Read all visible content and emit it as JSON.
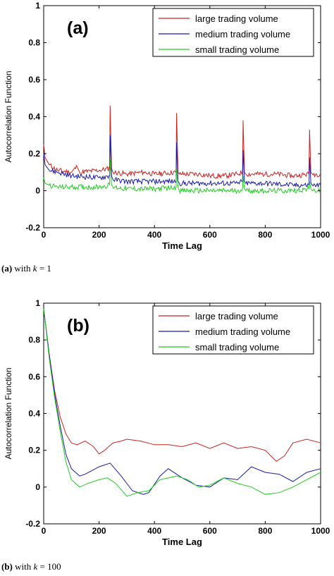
{
  "chart_data": [
    {
      "type": "line",
      "panel_label": "(a)",
      "xlabel": "Time Lag",
      "ylabel": "Autocorrelation Function",
      "xlim": [
        0,
        1000
      ],
      "ylim": [
        -0.2,
        1
      ],
      "xticks": [
        "0",
        "200",
        "400",
        "600",
        "800",
        "1000"
      ],
      "yticks": [
        "-0.2",
        "0",
        "0.2",
        "0.4",
        "0.6",
        "0.8",
        "1"
      ],
      "legend_position": "top-right",
      "grid": false,
      "series": [
        {
          "name": "large trading volume",
          "color": "#cc2222",
          "x": [
            0,
            5,
            20,
            50,
            100,
            120,
            130,
            200,
            238,
            240,
            245,
            250,
            300,
            360,
            400,
            478,
            480,
            485,
            490,
            560,
            600,
            650,
            700,
            718,
            720,
            725,
            730,
            800,
            840,
            900,
            958,
            960,
            965,
            970,
            1000
          ],
          "y": [
            0.25,
            0.18,
            0.14,
            0.11,
            0.1,
            0.13,
            0.1,
            0.11,
            0.12,
            0.46,
            0.12,
            0.1,
            0.09,
            0.1,
            0.09,
            0.1,
            0.42,
            0.1,
            0.09,
            0.09,
            0.08,
            0.08,
            0.09,
            0.1,
            0.38,
            0.1,
            0.09,
            0.09,
            0.09,
            0.08,
            0.09,
            0.33,
            0.1,
            0.09,
            0.09
          ]
        },
        {
          "name": "medium trading volume",
          "color": "#1a1aaa",
          "x": [
            0,
            5,
            20,
            50,
            100,
            200,
            238,
            240,
            245,
            250,
            300,
            400,
            478,
            480,
            485,
            490,
            600,
            700,
            718,
            720,
            725,
            730,
            800,
            900,
            958,
            960,
            965,
            970,
            1000
          ],
          "y": [
            0.2,
            0.14,
            0.11,
            0.1,
            0.08,
            0.07,
            0.08,
            0.3,
            0.08,
            0.06,
            0.05,
            0.05,
            0.05,
            0.26,
            0.05,
            0.04,
            0.04,
            0.04,
            0.05,
            0.22,
            0.05,
            0.04,
            0.04,
            0.03,
            0.03,
            0.18,
            0.04,
            0.03,
            0.03
          ]
        },
        {
          "name": "small trading volume",
          "color": "#22cc22",
          "x": [
            0,
            5,
            20,
            50,
            100,
            200,
            238,
            240,
            245,
            250,
            300,
            400,
            478,
            480,
            485,
            490,
            600,
            700,
            718,
            720,
            725,
            730,
            800,
            900,
            958,
            960,
            965,
            970,
            1000
          ],
          "y": [
            0.07,
            0.04,
            0.03,
            0.02,
            0.02,
            0.02,
            0.03,
            0.17,
            0.03,
            0.02,
            0.01,
            0.01,
            0.02,
            0.12,
            0.02,
            0.0,
            0.0,
            0.0,
            0.01,
            0.08,
            0.01,
            0.0,
            0.0,
            0.0,
            0.01,
            0.05,
            0.01,
            0.0,
            0.0
          ]
        }
      ]
    },
    {
      "type": "line",
      "panel_label": "(b)",
      "xlabel": "Time Lag",
      "ylabel": "Autocorrelation Function",
      "xlim": [
        0,
        1000
      ],
      "ylim": [
        -0.2,
        1
      ],
      "xticks": [
        "0",
        "200",
        "400",
        "600",
        "800",
        "1000"
      ],
      "yticks": [
        "-0.2",
        "0",
        "0.2",
        "0.4",
        "0.6",
        "0.8",
        "1"
      ],
      "legend_position": "top-right",
      "grid": false,
      "series": [
        {
          "name": "large trading volume",
          "color": "#cc2222",
          "x": [
            0,
            20,
            40,
            60,
            80,
            100,
            120,
            150,
            180,
            200,
            220,
            250,
            280,
            300,
            350,
            400,
            450,
            500,
            550,
            600,
            650,
            700,
            750,
            800,
            840,
            870,
            900,
            950,
            1000
          ],
          "y": [
            0.97,
            0.72,
            0.52,
            0.38,
            0.29,
            0.24,
            0.23,
            0.25,
            0.22,
            0.18,
            0.2,
            0.24,
            0.25,
            0.26,
            0.25,
            0.23,
            0.23,
            0.22,
            0.24,
            0.21,
            0.24,
            0.21,
            0.22,
            0.2,
            0.14,
            0.17,
            0.24,
            0.26,
            0.24
          ]
        },
        {
          "name": "medium trading volume",
          "color": "#1a1aaa",
          "x": [
            0,
            20,
            40,
            60,
            80,
            100,
            130,
            150,
            200,
            240,
            280,
            320,
            360,
            380,
            420,
            450,
            500,
            550,
            600,
            650,
            700,
            750,
            800,
            850,
            900,
            950,
            1000
          ],
          "y": [
            0.97,
            0.72,
            0.5,
            0.33,
            0.18,
            0.1,
            0.06,
            0.07,
            0.11,
            0.13,
            0.06,
            -0.02,
            -0.04,
            -0.03,
            0.06,
            0.1,
            0.05,
            0.01,
            0.0,
            0.05,
            0.04,
            0.11,
            0.08,
            0.07,
            0.03,
            0.08,
            0.1
          ]
        },
        {
          "name": "small trading volume",
          "color": "#22cc22",
          "x": [
            0,
            20,
            40,
            60,
            80,
            100,
            130,
            160,
            200,
            230,
            260,
            300,
            340,
            380,
            420,
            480,
            520,
            560,
            600,
            650,
            700,
            750,
            800,
            850,
            900,
            950,
            1000
          ],
          "y": [
            0.97,
            0.7,
            0.48,
            0.3,
            0.14,
            0.04,
            0.0,
            0.02,
            0.04,
            0.05,
            0.02,
            -0.05,
            -0.03,
            -0.02,
            0.04,
            0.06,
            0.04,
            0.0,
            0.01,
            0.05,
            0.02,
            0.0,
            -0.04,
            -0.03,
            0.0,
            0.04,
            0.08
          ]
        }
      ]
    }
  ],
  "captions": [
    {
      "label": "(a)",
      "text": "with",
      "var": "k",
      "rest": "= 1"
    },
    {
      "label": "(b)",
      "text": "with",
      "var": "k",
      "rest": "= 100"
    }
  ]
}
